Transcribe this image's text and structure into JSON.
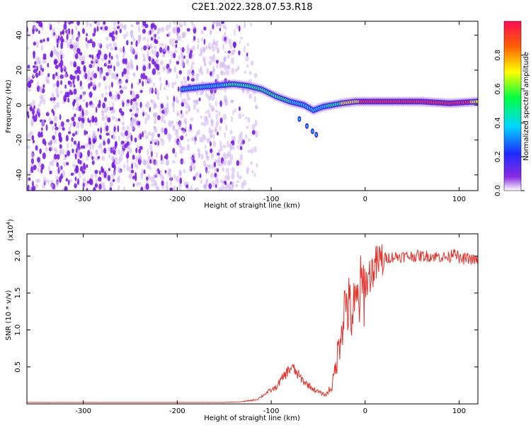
{
  "chart_data": [
    {
      "type": "heatmap",
      "title": "C2E1.2022.328.07.53.R18",
      "xlabel": "Height of straight line (km)",
      "ylabel": "Frequency (Hz)",
      "xlim": [
        -360,
        120
      ],
      "ylim": [
        -49,
        48
      ],
      "x_ticks": [
        -300,
        -200,
        -100,
        0,
        100
      ],
      "y_ticks": [
        -40,
        -20,
        0,
        20,
        40
      ],
      "colorbar": {
        "label": "Normalized spectral amplitude",
        "range": [
          0,
          1
        ],
        "ticks": [
          "0.0",
          "0.2",
          "0.4",
          "0.6",
          "0.8"
        ]
      },
      "ridge": {
        "x": [
          -195,
          -180,
          -160,
          -140,
          -125,
          -110,
          -95,
          -80,
          -65,
          -55,
          -45,
          -35,
          -25,
          -10,
          0,
          20,
          60,
          90,
          120
        ],
        "y": [
          9,
          10,
          11,
          12,
          11,
          9,
          5,
          2,
          0,
          -3,
          -1,
          0,
          1,
          2,
          2,
          2,
          2,
          1,
          2
        ],
        "amplitude": [
          0.3,
          0.35,
          0.4,
          0.5,
          0.55,
          0.5,
          0.45,
          0.45,
          0.4,
          0.35,
          0.4,
          0.5,
          0.6,
          0.7,
          0.8,
          0.85,
          0.8,
          0.9,
          0.7
        ]
      },
      "branch": {
        "x": [
          -70,
          -62,
          -56,
          -52
        ],
        "y": [
          -8,
          -12,
          -15,
          -17
        ]
      },
      "noise_region_x": [
        -360,
        -140
      ],
      "colors": {
        "noise": "#7a1ee8",
        "noise_faint": "#cdb0f2"
      }
    },
    {
      "type": "line",
      "title": "",
      "xlabel": "Height of straight line (km)",
      "ylabel": "SNR (10 * v/v)",
      "scale_label": "(x10",
      "scale_exp": "4",
      "scale_close": ")",
      "xlim": [
        -360,
        120
      ],
      "ylim": [
        0,
        2.3
      ],
      "x_ticks": [
        -300,
        -200,
        -100,
        0,
        100
      ],
      "y_ticks": [
        0.5,
        1.0,
        1.5,
        2.0
      ],
      "series": [
        {
          "color": "#e8302a",
          "x": [
            -360,
            -300,
            -200,
            -150,
            -130,
            -115,
            -105,
            -95,
            -88,
            -82,
            -78,
            -72,
            -65,
            -55,
            -48,
            -42,
            -35,
            -30,
            -25,
            -20,
            -15,
            -10,
            -5,
            0,
            5,
            10,
            15,
            20,
            30,
            50,
            70,
            90,
            95,
            100,
            110,
            120
          ],
          "y": [
            0.02,
            0.02,
            0.02,
            0.02,
            0.03,
            0.06,
            0.15,
            0.22,
            0.35,
            0.45,
            0.5,
            0.4,
            0.3,
            0.2,
            0.15,
            0.12,
            0.25,
            0.6,
            1.1,
            1.4,
            1.2,
            1.3,
            1.5,
            1.6,
            1.75,
            1.85,
            1.92,
            1.97,
            1.99,
            2.0,
            2.0,
            1.98,
            2.1,
            1.95,
            1.97,
            1.93
          ]
        }
      ]
    }
  ]
}
